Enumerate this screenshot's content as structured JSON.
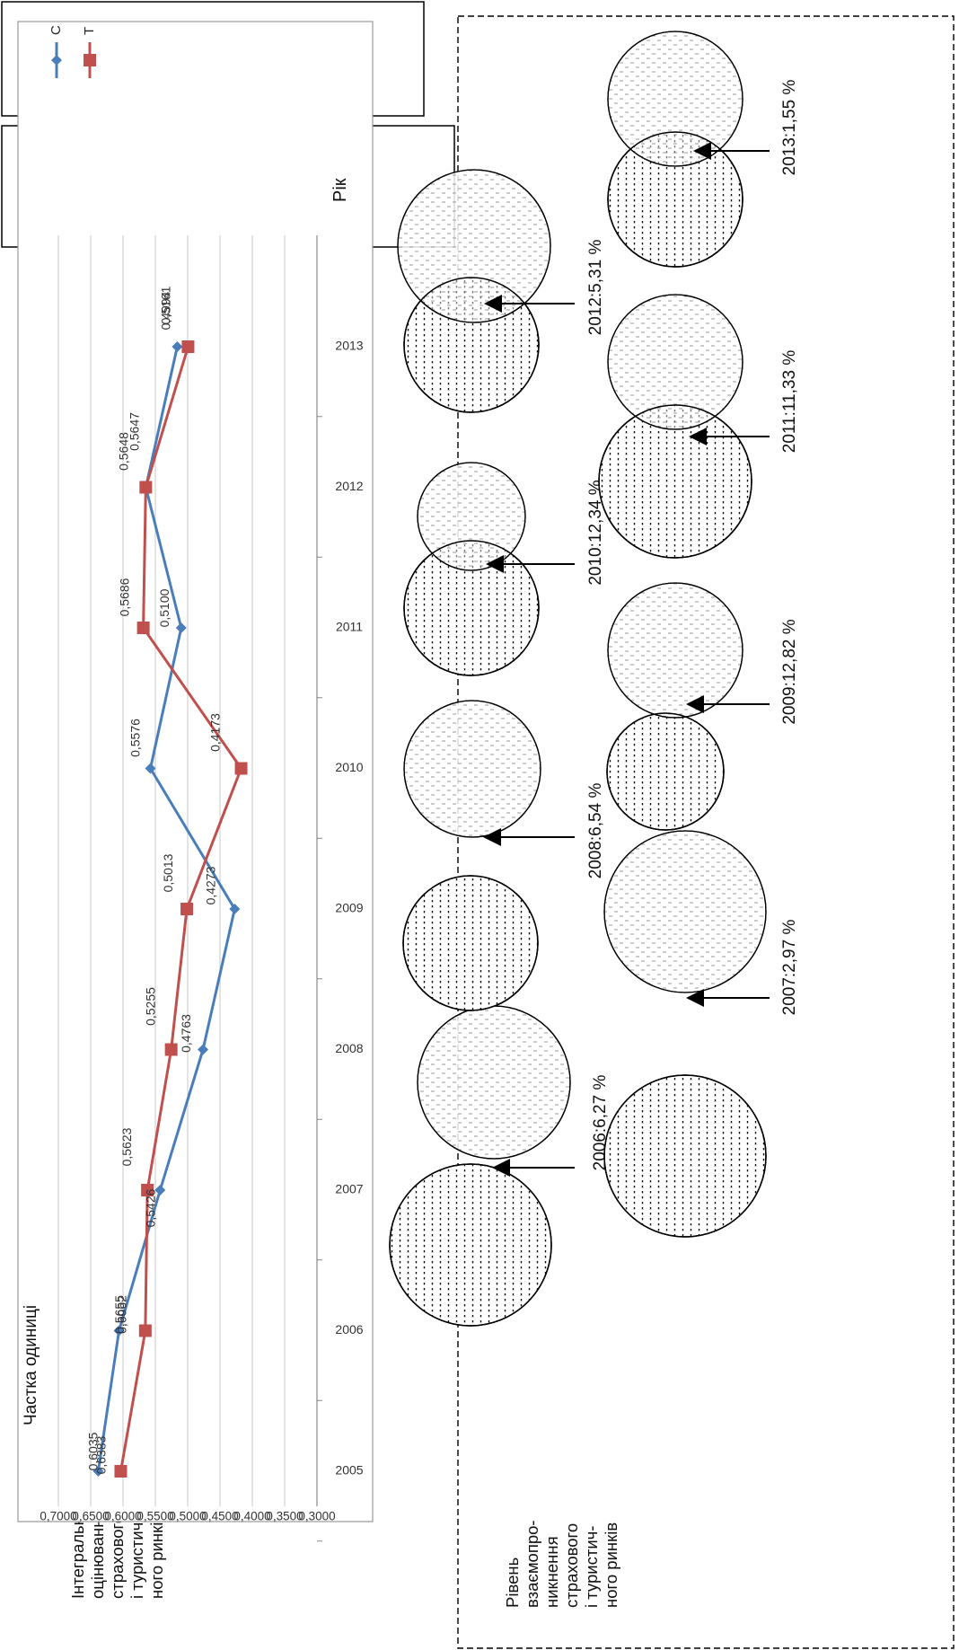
{
  "left_boxes": {
    "integral": {
      "lines": [
        "Інтегральне",
        "оцінювання",
        "страхового",
        "і туристич-",
        "ного ринків"
      ]
    },
    "interpenetration": {
      "lines": [
        "Рівень",
        "взаємопро-",
        "никнення",
        "страхового",
        "і туристич-",
        "ного ринків"
      ]
    }
  },
  "chart_data": {
    "type": "line",
    "ylabel": "Частка одиниці",
    "xlabel": "Рік",
    "categories": [
      "2005",
      "2006",
      "2007",
      "2008",
      "2009",
      "2010",
      "2011",
      "2012",
      "2013"
    ],
    "ylim": [
      0.3,
      0.7
    ],
    "ytick_labels": [
      "0,3000",
      "0,3500",
      "0,4000",
      "0,4500",
      "0,5000",
      "0,5500",
      "0,6000",
      "0,6500",
      "0,7000"
    ],
    "grid": true,
    "legend_position": "top-right",
    "series": [
      {
        "name": "С",
        "color": "#4a7ebb",
        "marker": "diamond",
        "values": [
          0.6383,
          0.6062,
          0.5426,
          0.4763,
          0.4273,
          0.5576,
          0.51,
          0.5647,
          0.5161
        ],
        "labels": [
          "0,6383",
          "0,6062",
          "0,5426",
          "0,4763",
          "0,4273",
          "0,5576",
          "0,5100",
          "0,5647",
          "0,5161"
        ]
      },
      {
        "name": "Т",
        "color": "#c0504d",
        "marker": "square",
        "values": [
          0.6035,
          0.5655,
          0.5623,
          0.5255,
          0.5013,
          0.4173,
          0.5686,
          0.5648,
          0.4994
        ],
        "labels": [
          "0,6035",
          "0,5655",
          "0,5623",
          "0,5255",
          "0,5013",
          "0,4173",
          "0,5686",
          "0,5648",
          "0,4994"
        ]
      }
    ]
  },
  "venn": [
    {
      "year": "2006",
      "label": "2006:6,27 %",
      "value": 6.27
    },
    {
      "year": "2007",
      "label": "2007:2,97 %",
      "value": 2.97
    },
    {
      "year": "2008",
      "label": "2008:6,54 %",
      "value": 6.54
    },
    {
      "year": "2009",
      "label": "2009:12,82 %",
      "value": 12.82
    },
    {
      "year": "2010",
      "label": "2010:12,34 %",
      "value": 12.34
    },
    {
      "year": "2011",
      "label": "2011:11,33 %",
      "value": 11.33
    },
    {
      "year": "2012",
      "label": "2012:5,31 %",
      "value": 5.31
    },
    {
      "year": "2013",
      "label": "2013:1,55 %",
      "value": 1.55
    }
  ]
}
